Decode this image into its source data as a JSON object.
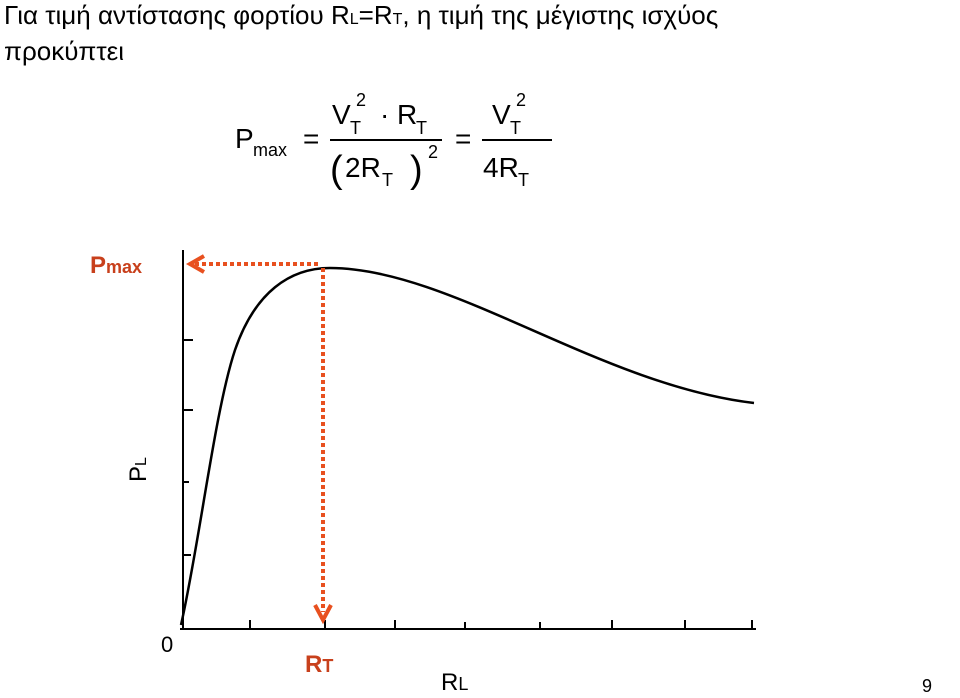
{
  "title": {
    "line1": [
      "Για τιμή αντίστασης φορτίου R",
      "L",
      "=R",
      "T",
      ", η τιμή της μέγιστης ισχύος"
    ],
    "line2": "προκύπτει"
  },
  "formula": {
    "lhs": [
      "P",
      "max"
    ],
    "equals": [
      "=",
      "="
    ],
    "numerator1": [
      "V",
      "T",
      "2",
      "·",
      "R",
      "T"
    ],
    "denominator1": [
      "(",
      "2R",
      "T",
      ")",
      "2"
    ],
    "numerator2": [
      "V",
      "T",
      "2"
    ],
    "denominator2": [
      "4R",
      "T"
    ]
  },
  "graph": {
    "pmax_label": [
      "P",
      "max"
    ],
    "rt_label": [
      "R",
      "T"
    ],
    "y_label": [
      "P",
      "L"
    ],
    "x_label": [
      "R",
      "L"
    ],
    "origin": "0"
  },
  "page_number": "9"
}
